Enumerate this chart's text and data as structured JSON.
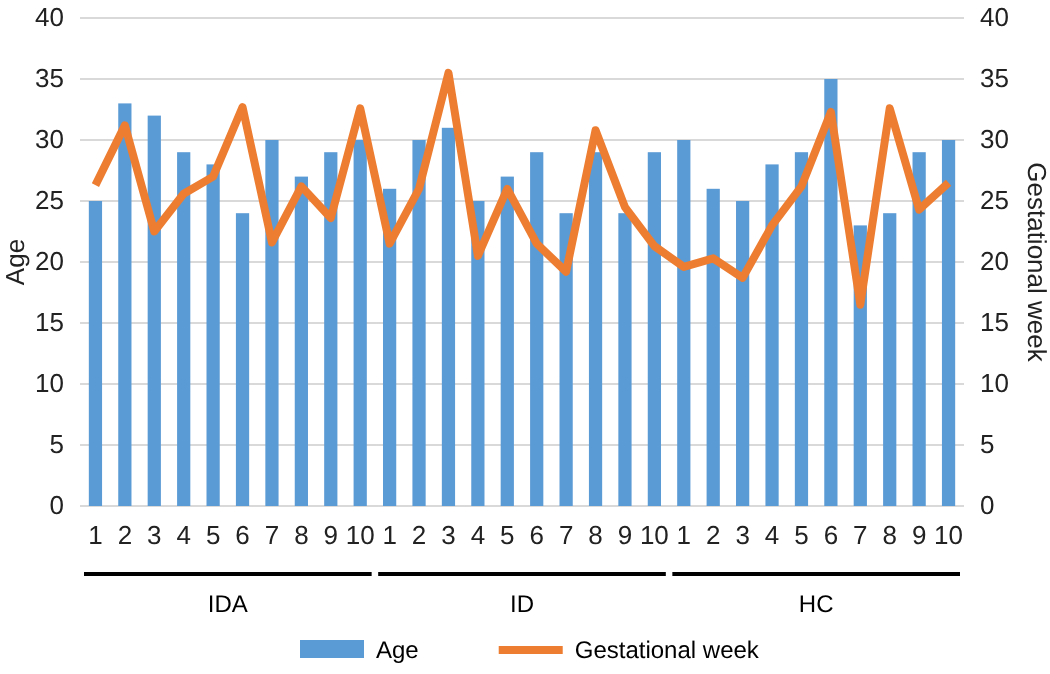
{
  "chart_data": {
    "type": "bar",
    "categories": [
      "1",
      "2",
      "3",
      "4",
      "5",
      "6",
      "7",
      "8",
      "9",
      "10",
      "1",
      "2",
      "3",
      "4",
      "5",
      "6",
      "7",
      "8",
      "9",
      "10",
      "1",
      "2",
      "3",
      "4",
      "5",
      "6",
      "7",
      "8",
      "9",
      "10"
    ],
    "series": [
      {
        "name": "Age",
        "color": "#5b9bd5",
        "values": [
          25,
          33,
          32,
          29,
          28,
          24,
          30,
          27,
          29,
          30,
          26,
          30,
          31,
          25,
          27,
          29,
          24,
          29,
          24,
          29,
          30,
          26,
          25,
          28,
          29,
          35,
          23,
          24,
          29,
          30
        ]
      },
      {
        "name": "Gestational week",
        "type": "line",
        "axis": "y2",
        "color": "#ed7d31",
        "values": [
          26.3,
          31.2,
          22.5,
          25.6,
          27,
          32.7,
          21.6,
          26.2,
          23.6,
          32.6,
          21.5,
          26,
          35.5,
          20.5,
          26,
          21.5,
          19.2,
          30.8,
          24.5,
          21.3,
          19.6,
          20.3,
          18.7,
          23,
          26.2,
          32.3,
          16.5,
          32.6,
          24.3,
          26.5
        ]
      }
    ],
    "ylabel": "Age",
    "y2label": "Gestational week",
    "ylim": [
      0,
      40
    ],
    "yticks": [
      0,
      5,
      10,
      15,
      20,
      25,
      30,
      35,
      40
    ],
    "y2lim": [
      0,
      40
    ],
    "y2ticks": [
      0,
      5,
      10,
      15,
      20,
      25,
      30,
      35,
      40
    ],
    "annotations": [
      "IDA",
      "ID",
      "HC"
    ],
    "grid": "y",
    "legend": "bottom",
    "marker": "none",
    "line_style": "solid"
  }
}
